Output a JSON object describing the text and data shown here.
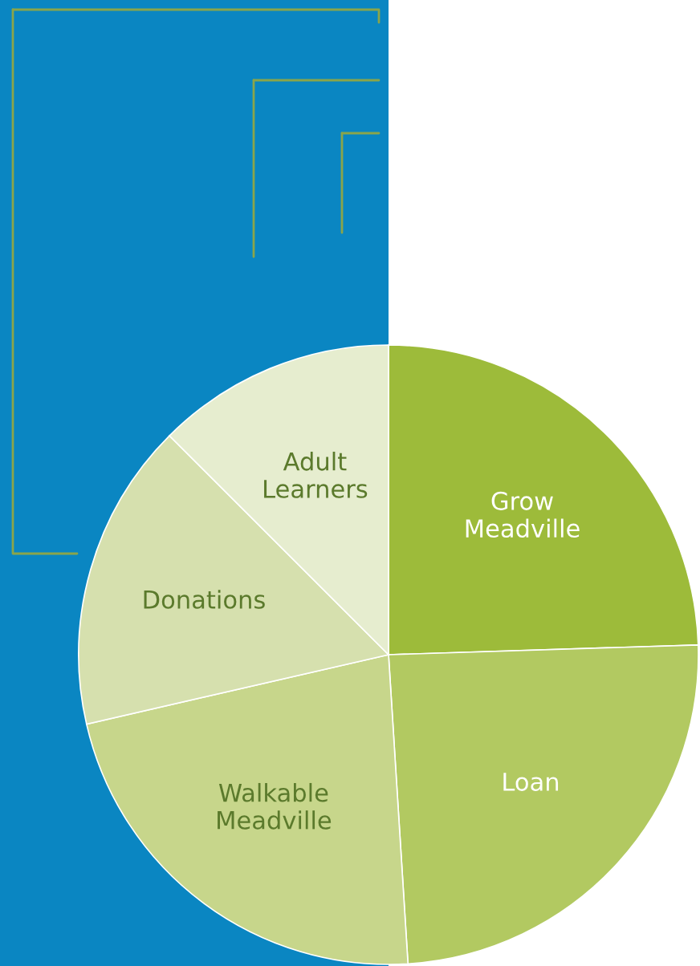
{
  "chart_data": {
    "type": "pie",
    "categories": [
      "Grow\nMeadville",
      "Loan",
      "Walkable\nMeadville",
      "Donations",
      "Adult\nLearners"
    ],
    "values": [
      24.5,
      24.5,
      22.4,
      16.1,
      12.5
    ],
    "colors": [
      "#9dbb3a",
      "#b2c961",
      "#c7d68b",
      "#d6e0ae",
      "#e6edcf"
    ]
  }
}
